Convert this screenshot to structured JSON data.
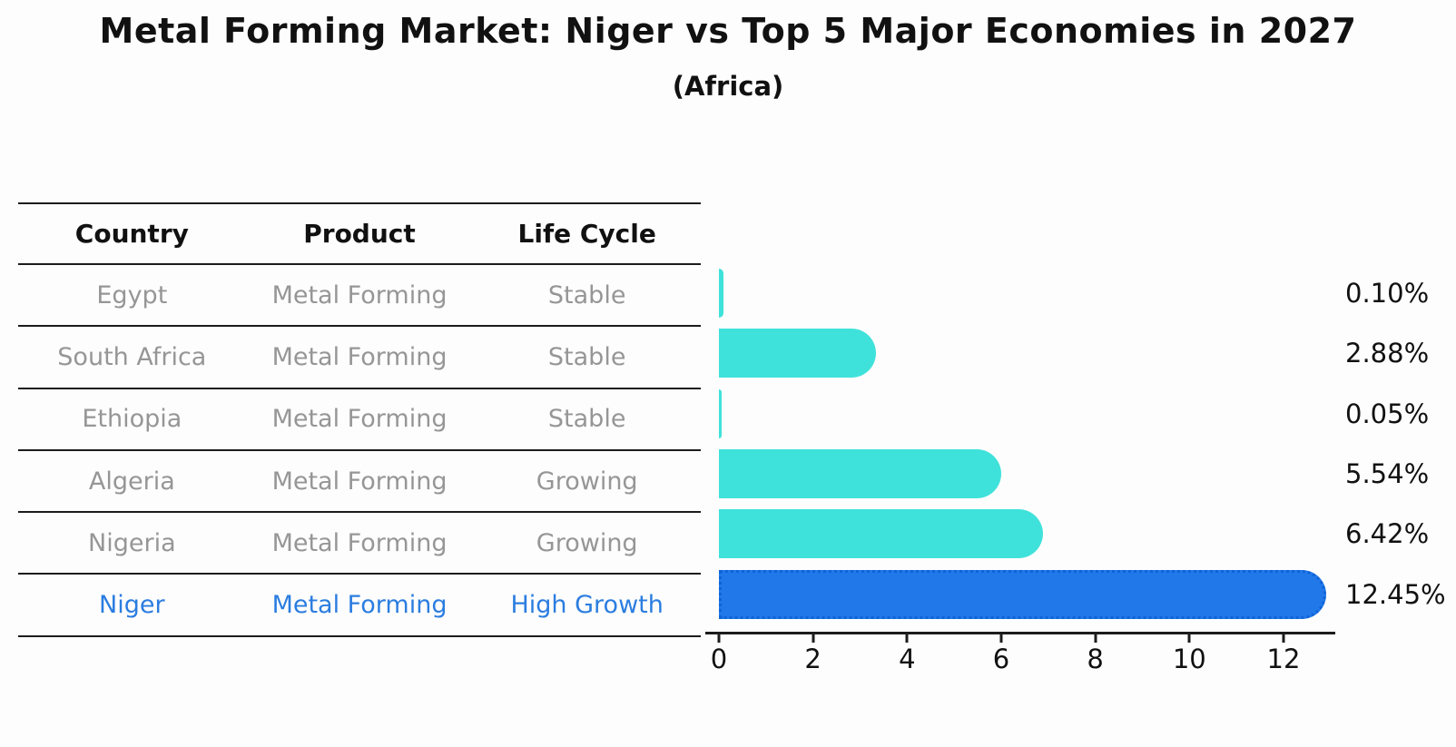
{
  "title": "Metal Forming Market: Niger vs Top 5 Major Economies in 2027",
  "subtitle": "(Africa)",
  "table": {
    "headers": [
      "Country",
      "Product",
      "Life Cycle"
    ],
    "rows": [
      {
        "country": "Egypt",
        "product": "Metal Forming",
        "life_cycle": "Stable",
        "highlight": false
      },
      {
        "country": "South Africa",
        "product": "Metal Forming",
        "life_cycle": "Stable",
        "highlight": false
      },
      {
        "country": "Ethiopia",
        "product": "Metal Forming",
        "life_cycle": "Stable",
        "highlight": false
      },
      {
        "country": "Algeria",
        "product": "Metal Forming",
        "life_cycle": "Growing",
        "highlight": false
      },
      {
        "country": "Nigeria",
        "product": "Metal Forming",
        "life_cycle": "Growing",
        "highlight": false
      },
      {
        "country": "Niger",
        "product": "Metal Forming",
        "life_cycle": "High Growth",
        "highlight": true
      }
    ]
  },
  "chart_data": {
    "type": "bar",
    "orientation": "horizontal",
    "categories": [
      "Egypt",
      "South Africa",
      "Ethiopia",
      "Algeria",
      "Nigeria",
      "Niger"
    ],
    "values": [
      0.1,
      2.88,
      0.05,
      5.54,
      6.42,
      12.45
    ],
    "value_labels": [
      "0.10%",
      "2.88%",
      "0.05%",
      "5.54%",
      "6.42%",
      "12.45%"
    ],
    "x_ticks": [
      0,
      2,
      4,
      6,
      8,
      10,
      12
    ],
    "xlim": [
      0,
      13.1
    ],
    "grid": "off",
    "legend": "none",
    "bar_color": "#3fe2da",
    "highlight_color": "#2178e8",
    "highlight_border_color": "#0f63d8",
    "highlight_text_color": "#2b7de0",
    "highlight_index": 5
  }
}
